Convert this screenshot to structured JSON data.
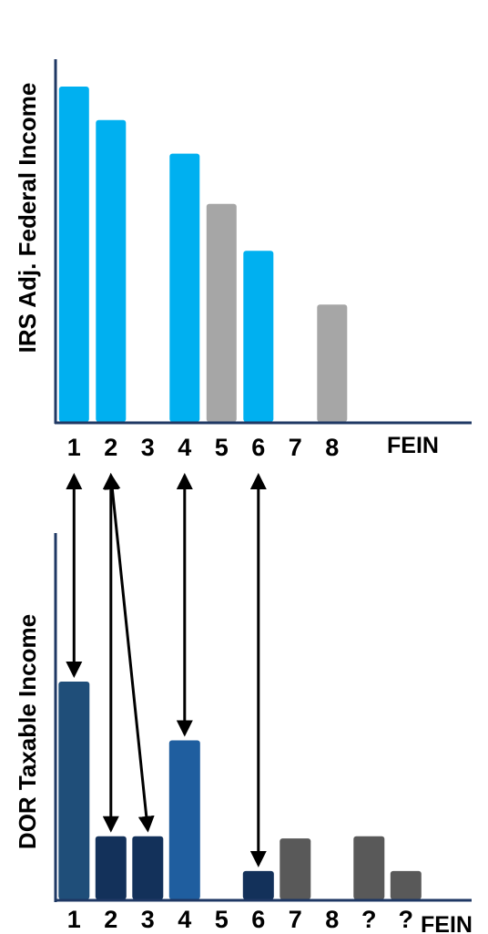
{
  "chart_data": [
    {
      "type": "bar",
      "ylabel": "IRS Adj. Federal Income",
      "xlabel": "FEIN",
      "categories": [
        "1",
        "2",
        "3",
        "4",
        "5",
        "6",
        "7",
        "8"
      ],
      "values": [
        100,
        90,
        null,
        80,
        65,
        51,
        null,
        35
      ],
      "colors": [
        "#00b0f0",
        "#00b0f0",
        null,
        "#00b0f0",
        "#a6a6a6",
        "#00b0f0",
        null,
        "#a6a6a6"
      ],
      "ylim": [
        0,
        100
      ],
      "grid": false
    },
    {
      "type": "bar",
      "ylabel": "DOR Taxable Income",
      "xlabel": "FEIN",
      "categories": [
        "1",
        "2",
        "3",
        "4",
        "5",
        "6",
        "7",
        "8",
        "?",
        "?"
      ],
      "values": [
        100,
        29,
        29,
        73,
        null,
        13,
        28,
        null,
        29,
        13
      ],
      "colors": [
        "#1f4e79",
        "#13315a",
        "#13315a",
        "#1f5e9f",
        null,
        "#13315a",
        "#595959",
        null,
        "#595959",
        "#595959"
      ],
      "ylim": [
        0,
        100
      ],
      "grid": false
    }
  ],
  "mappings": [
    {
      "from": "1",
      "to": "1"
    },
    {
      "from": "2",
      "to": "2"
    },
    {
      "from": "2",
      "to": "3"
    },
    {
      "from": "4",
      "to": "4"
    },
    {
      "from": "6",
      "to": "6"
    }
  ],
  "colors": {
    "axis": "#1f3864",
    "arrow": "#000000"
  }
}
